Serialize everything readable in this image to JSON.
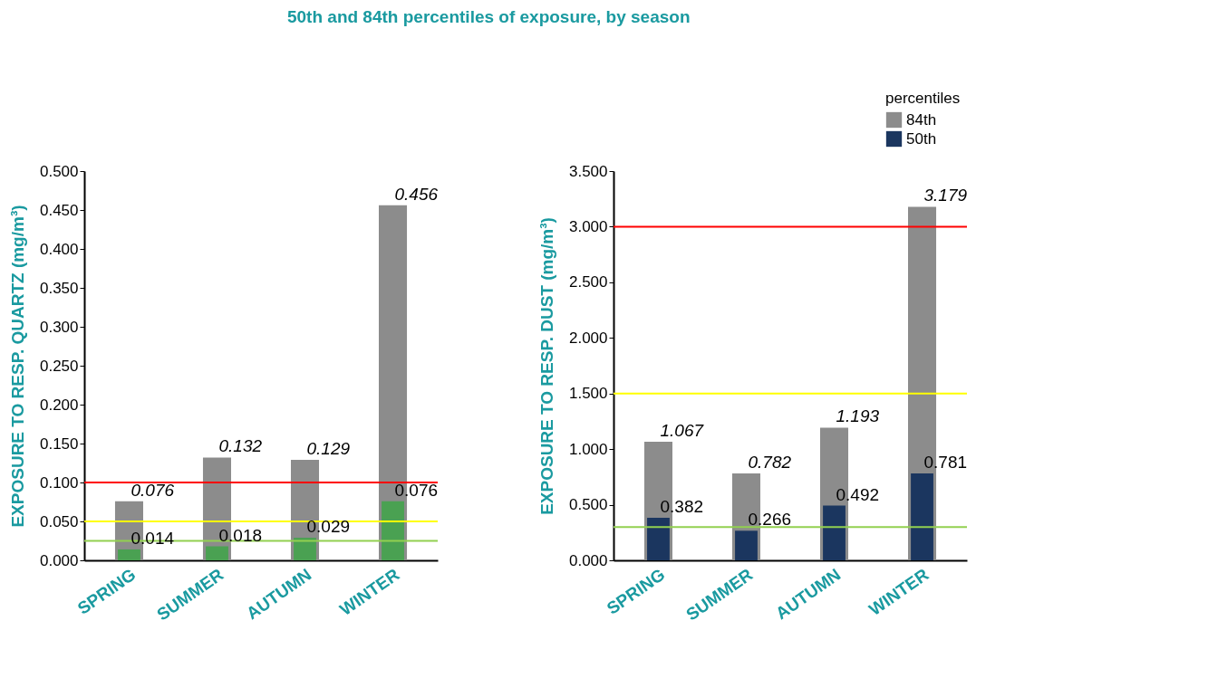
{
  "chart_data": [
    {
      "type": "bar",
      "title": "50th and 84th percentiles of exposure, by season",
      "ylabel": "EXPOSURE TO RESP. QUARTZ (mg/m³)",
      "categories": [
        "SPRING",
        "SUMMER",
        "AUTUMN",
        "WINTER"
      ],
      "series": [
        {
          "color": "#8c8c8c",
          "values": [
            0.076,
            0.132,
            0.129,
            0.456
          ]
        },
        {
          "color": "#4aa152",
          "values": [
            0.014,
            0.018,
            0.029,
            0.076
          ]
        }
      ],
      "ylim": [
        0,
        0.5
      ],
      "yticks": [
        {
          "value": 0,
          "label": "0.000"
        },
        {
          "value": 0.05,
          "label": "0.050"
        },
        {
          "value": 0.1,
          "label": "0.100"
        },
        {
          "value": 0.15,
          "label": "0.150"
        },
        {
          "value": 0.2,
          "label": "0.200"
        },
        {
          "value": 0.25,
          "label": "0.250"
        },
        {
          "value": 0.3,
          "label": "0.300"
        },
        {
          "value": 0.35,
          "label": "0.350"
        },
        {
          "value": 0.4,
          "label": "0.400"
        },
        {
          "value": 0.45,
          "label": "0.450"
        },
        {
          "value": 0.5,
          "label": "0.500"
        }
      ],
      "ref_lines": [
        {
          "axis": "y",
          "value": 0.1,
          "color": "#ff0000"
        },
        {
          "axis": "y",
          "value": 0.05,
          "color": "#ffff00"
        },
        {
          "axis": "y",
          "value": 0.025,
          "color": "#92d050"
        }
      ],
      "data_labels": true,
      "grid": false
    },
    {
      "type": "bar",
      "ylabel": "EXPOSURE TO RESP. DUST (mg/m³)",
      "legend_title": "percentiles",
      "categories": [
        "SPRING",
        "SUMMER",
        "AUTUMN",
        "WINTER"
      ],
      "series": [
        {
          "name": "84th",
          "color": "#8c8c8c",
          "values": [
            1.067,
            0.782,
            1.193,
            3.179
          ]
        },
        {
          "name": "50th",
          "color": "#1b365f",
          "values": [
            0.382,
            0.266,
            0.492,
            0.781
          ]
        }
      ],
      "ylim": [
        0,
        3.5
      ],
      "yticks": [
        {
          "value": 0,
          "label": "0.000"
        },
        {
          "value": 0.5,
          "label": "0.500"
        },
        {
          "value": 1,
          "label": "1.000"
        },
        {
          "value": 1.5,
          "label": "1.500"
        },
        {
          "value": 2,
          "label": "2.000"
        },
        {
          "value": 2.5,
          "label": "2.500"
        },
        {
          "value": 3,
          "label": "3.000"
        },
        {
          "value": 3.5,
          "label": "3.500"
        }
      ],
      "ref_lines": [
        {
          "axis": "y",
          "value": 3.0,
          "color": "#ff0000"
        },
        {
          "axis": "y",
          "value": 1.5,
          "color": "#ffff00"
        },
        {
          "axis": "y",
          "value": 0.3,
          "color": "#92d050"
        }
      ],
      "data_labels": true,
      "grid": false,
      "legend": "top right"
    }
  ]
}
